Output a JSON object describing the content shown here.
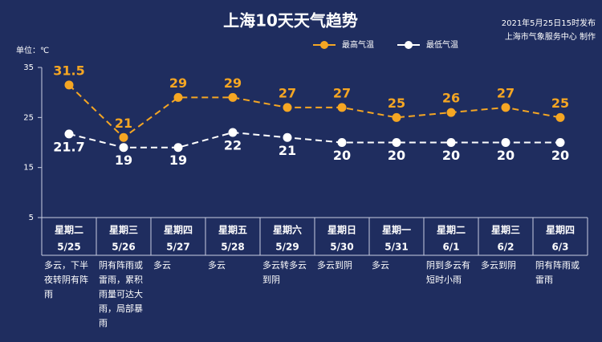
{
  "chart_data": {
    "type": "line",
    "title": "上海10天天气趋势",
    "publish_time": "2021年5月25日15时发布",
    "source": "上海市气象服务中心 制作",
    "unit": "单位：℃",
    "weekdays": [
      "星期二",
      "星期三",
      "星期四",
      "星期五",
      "星期六",
      "星期日",
      "星期一",
      "星期二",
      "星期三",
      "星期四"
    ],
    "categories": [
      "5/25",
      "5/26",
      "5/27",
      "5/28",
      "5/29",
      "5/30",
      "5/31",
      "6/1",
      "6/2",
      "6/3"
    ],
    "weather": [
      "多云，下半夜转阴有阵雨",
      "阴有阵雨或雷雨，累积雨量可达大雨，局部暴雨",
      "多云",
      "多云",
      "多云转多云到阴",
      "多云到阴",
      "多云",
      "阴到多云有短时小雨",
      "多云到阴",
      "阴有阵雨或雷雨"
    ],
    "series": [
      {
        "name": "最高气温",
        "color": "#f5a623",
        "values": [
          31.5,
          21,
          29,
          29,
          27,
          27,
          25,
          26,
          27,
          25
        ]
      },
      {
        "name": "最低气温",
        "color": "#ffffff",
        "values": [
          21.7,
          19,
          19,
          22,
          21,
          20,
          20,
          20,
          20,
          20
        ]
      }
    ],
    "ylim": [
      5,
      35
    ],
    "yticks": [
      5,
      15,
      25,
      35
    ],
    "grid": false
  }
}
